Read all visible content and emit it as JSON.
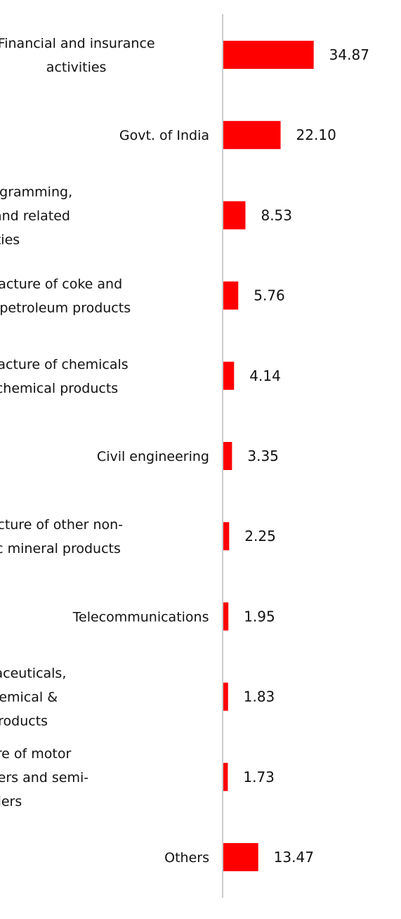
{
  "chart_data": {
    "type": "bar",
    "orientation": "horizontal",
    "categories": [
      [
        "Financial and insurance",
        "activities"
      ],
      [
        "Govt. of India"
      ],
      [
        "Computer programming,",
        "consultancy and related",
        "activities"
      ],
      [
        "Manufacture of coke and",
        "refined petroleum products"
      ],
      [
        "Manufacture of chemicals",
        "and chemical products"
      ],
      [
        "Civil engineering"
      ],
      [
        "Manufacture of other non-",
        "metallic mineral products"
      ],
      [
        "Telecommunications"
      ],
      [
        "Mfg of pharmaceuticals,",
        "medicinal chemical &",
        "botanical products"
      ],
      [
        "Manufacture of motor",
        "vehicles, trailers and semi-",
        "trailers"
      ],
      [
        "Others"
      ]
    ],
    "values": [
      34.87,
      22.1,
      8.53,
      5.76,
      4.14,
      3.35,
      2.25,
      1.95,
      1.83,
      1.73,
      13.47
    ],
    "value_labels": [
      "34.87",
      "22.10",
      "8.53",
      "5.76",
      "4.14",
      "3.35",
      "2.25",
      "1.95",
      "1.83",
      "1.73",
      "13.47"
    ],
    "title": "",
    "xlabel": "",
    "ylabel": "",
    "grid": false,
    "legend": "none",
    "bar_color": "#ff0000",
    "axis_color": "#cccccc",
    "text_color": "#111111"
  }
}
